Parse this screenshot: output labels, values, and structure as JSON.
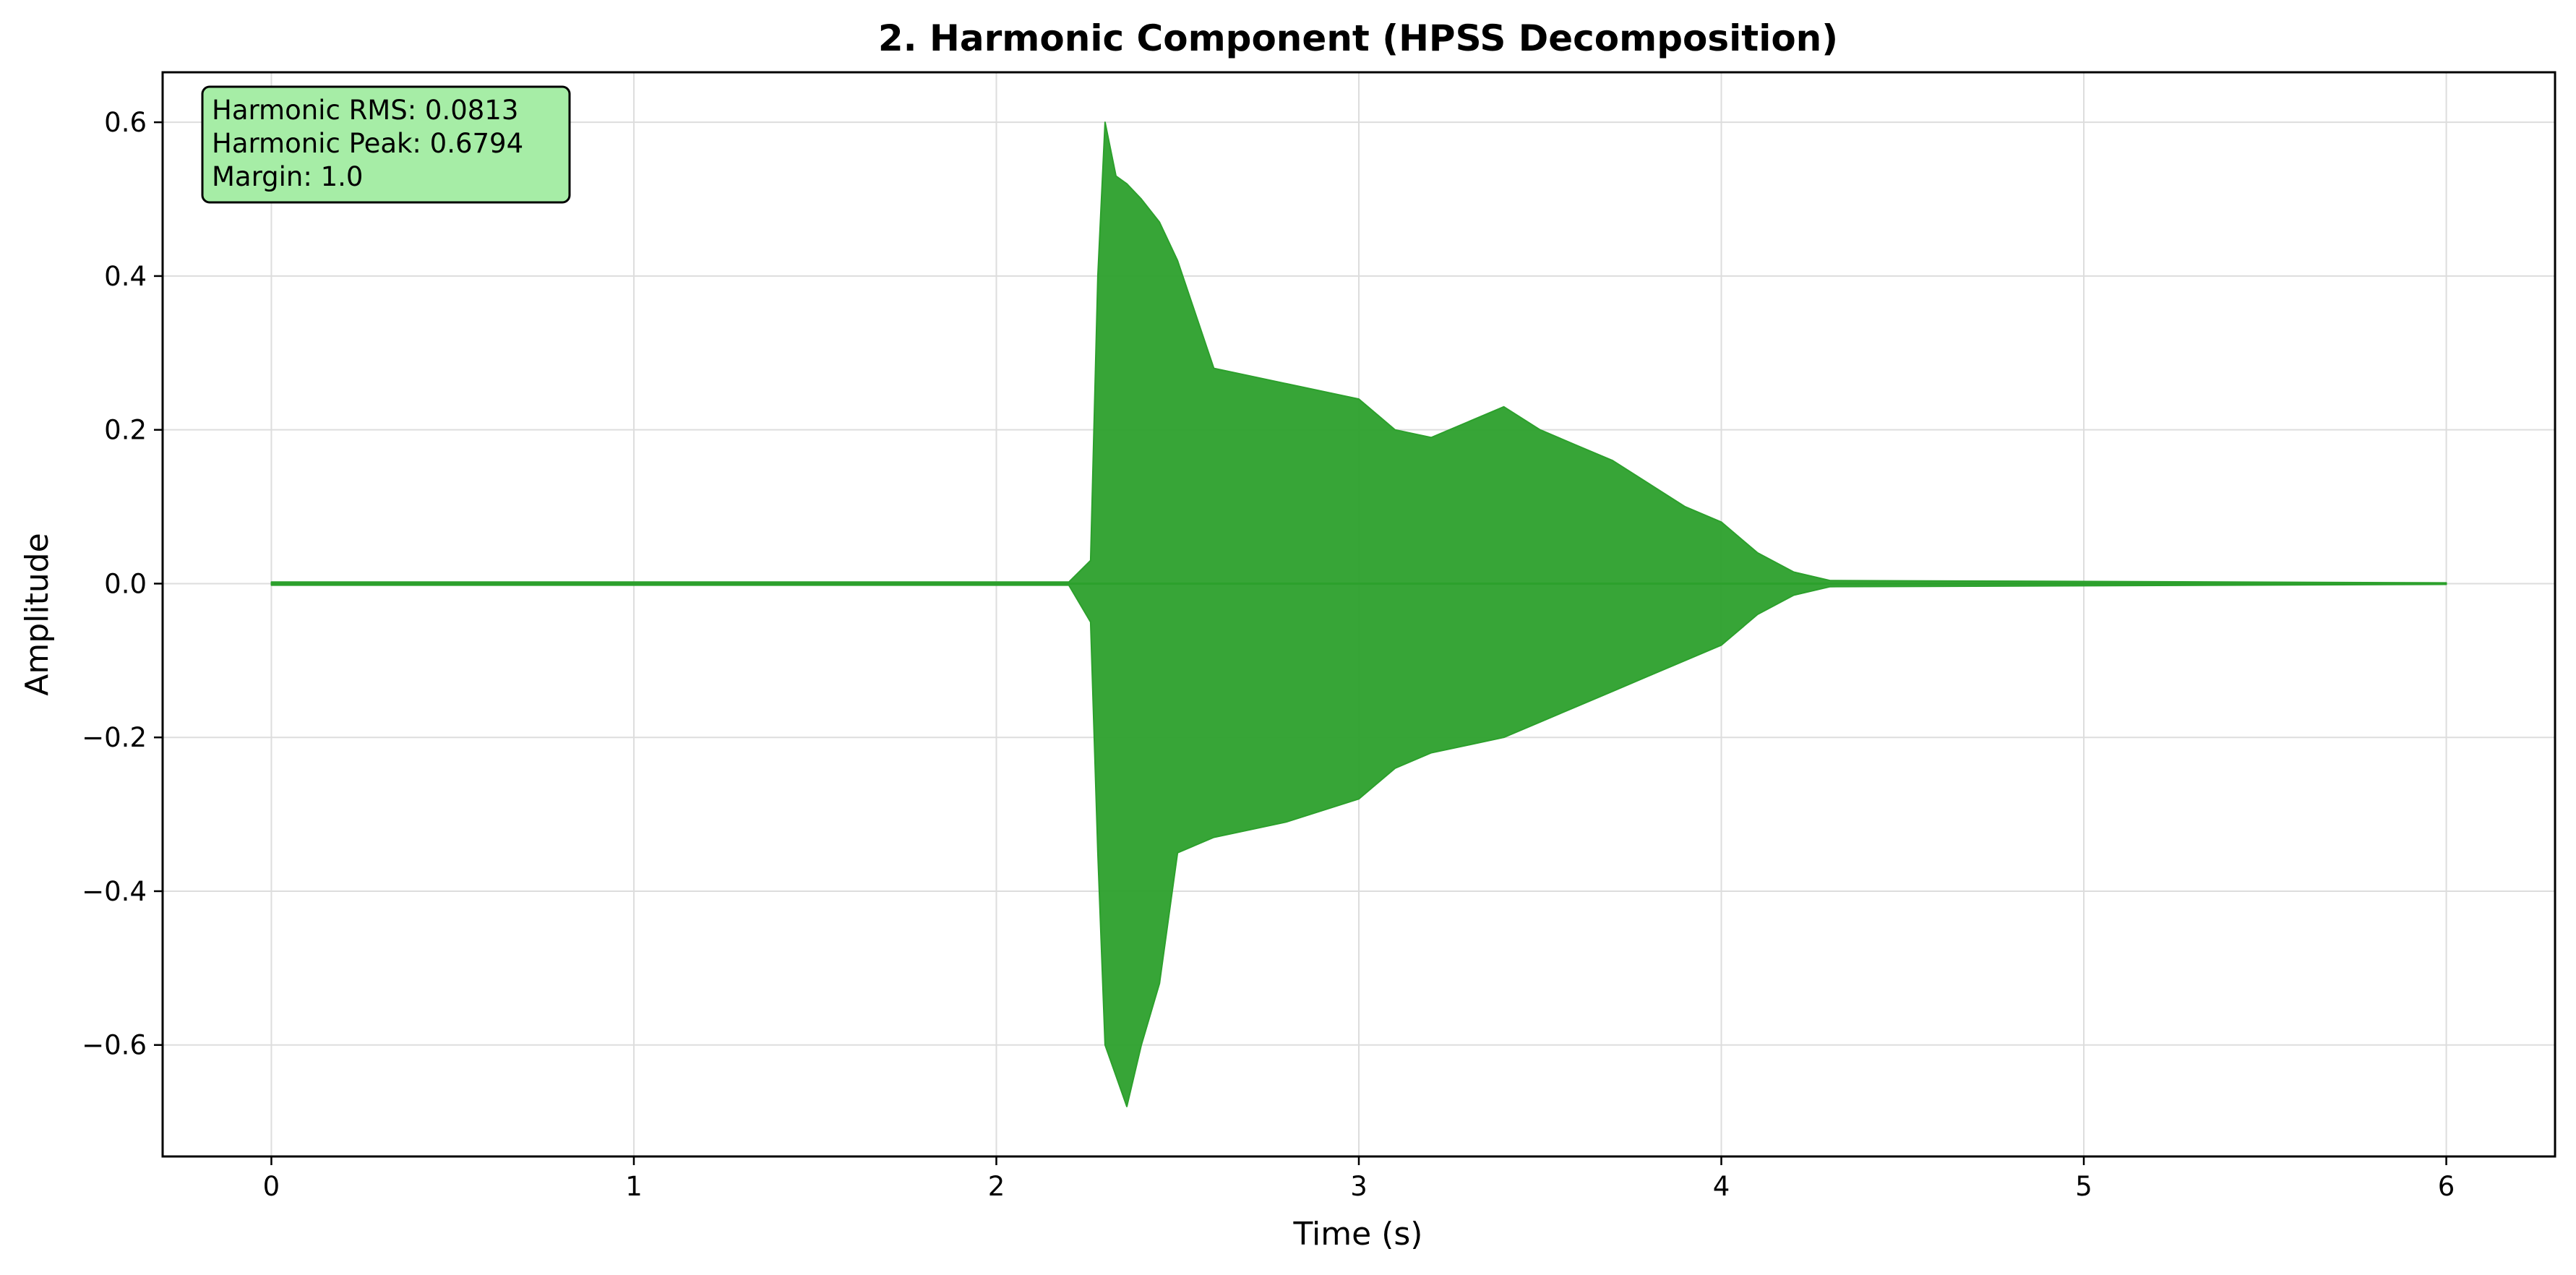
{
  "chart_data": {
    "type": "line",
    "title": "2. Harmonic Component (HPSS Decomposition)",
    "xlabel": "Time (s)",
    "ylabel": "Amplitude",
    "xlim": [
      -0.3,
      6.3
    ],
    "ylim": [
      -0.745,
      0.665
    ],
    "xticks": [
      0,
      1,
      2,
      3,
      4,
      5,
      6
    ],
    "xtick_labels": [
      "0",
      "1",
      "2",
      "3",
      "4",
      "5",
      "6"
    ],
    "yticks": [
      0.6,
      0.4,
      0.2,
      0.0,
      -0.2,
      -0.4,
      -0.6
    ],
    "ytick_labels": [
      "0.6",
      "0.4",
      "0.2",
      "0.0",
      "−0.2",
      "−0.4",
      "−0.6"
    ],
    "grid": true,
    "series": [
      {
        "color": "#2ca02c",
        "x": [
          0.0,
          2.2,
          2.26,
          2.28,
          2.3,
          2.33,
          2.36,
          2.4,
          2.45,
          2.5,
          2.6,
          2.7,
          2.8,
          3.0,
          3.1,
          3.2,
          3.3,
          3.4,
          3.5,
          3.6,
          3.7,
          3.8,
          3.9,
          4.0,
          4.1,
          4.2,
          4.3,
          6.0
        ],
        "envelope_max": [
          0.002,
          0.002,
          0.03,
          0.4,
          0.6,
          0.53,
          0.52,
          0.5,
          0.47,
          0.42,
          0.28,
          0.27,
          0.26,
          0.24,
          0.2,
          0.19,
          0.21,
          0.23,
          0.2,
          0.18,
          0.16,
          0.13,
          0.1,
          0.08,
          0.04,
          0.015,
          0.004,
          0.001
        ],
        "envelope_min": [
          -0.002,
          -0.002,
          -0.05,
          -0.35,
          -0.6,
          -0.64,
          -0.68,
          -0.6,
          -0.52,
          -0.35,
          -0.33,
          -0.32,
          -0.31,
          -0.28,
          -0.24,
          -0.22,
          -0.21,
          -0.2,
          -0.18,
          -0.16,
          -0.14,
          -0.12,
          -0.1,
          -0.08,
          -0.04,
          -0.015,
          -0.004,
          -0.001
        ]
      }
    ],
    "annotation": {
      "lines": [
        "Harmonic RMS: 0.0813",
        "Harmonic Peak: 0.6794",
        "Margin: 1.0"
      ],
      "background": "#a6eda6"
    }
  }
}
